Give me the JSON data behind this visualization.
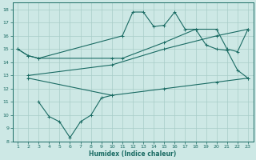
{
  "xlabel": "Humidex (Indice chaleur)",
  "xlim": [
    0.5,
    23.5
  ],
  "ylim": [
    8,
    18.5
  ],
  "yticks": [
    8,
    9,
    10,
    11,
    12,
    13,
    14,
    15,
    16,
    17,
    18
  ],
  "xticks": [
    1,
    2,
    3,
    4,
    5,
    6,
    7,
    8,
    9,
    10,
    11,
    12,
    13,
    14,
    15,
    16,
    17,
    18,
    19,
    20,
    21,
    22,
    23
  ],
  "background_color": "#cde8e5",
  "grid_color": "#a8ccc8",
  "line_color": "#1a6b63",
  "line1_x": [
    1,
    2,
    3,
    11,
    12,
    13,
    14,
    15,
    16,
    17,
    18,
    19,
    20,
    21,
    22,
    23
  ],
  "line1_y": [
    15.0,
    14.5,
    14.3,
    16.0,
    17.8,
    17.8,
    16.7,
    16.8,
    17.8,
    16.5,
    16.5,
    15.3,
    15.0,
    14.9,
    13.4,
    12.8
  ],
  "line2_x": [
    1,
    2,
    3,
    10,
    11,
    15,
    18,
    20,
    21,
    22,
    23
  ],
  "line2_y": [
    15.0,
    14.5,
    14.3,
    14.3,
    14.3,
    15.5,
    16.5,
    16.5,
    15.0,
    14.8,
    16.5
  ],
  "line3_x": [
    2,
    10,
    15,
    20,
    23
  ],
  "line3_y": [
    13.0,
    13.8,
    15.0,
    16.0,
    16.5
  ],
  "line4_x": [
    2,
    10,
    15,
    20,
    23
  ],
  "line4_y": [
    12.8,
    11.5,
    12.0,
    12.5,
    12.8
  ],
  "line5_x": [
    3,
    4,
    5,
    6,
    7,
    8,
    9,
    10
  ],
  "line5_y": [
    11.0,
    9.9,
    9.5,
    8.3,
    9.5,
    10.0,
    11.3,
    11.5
  ]
}
